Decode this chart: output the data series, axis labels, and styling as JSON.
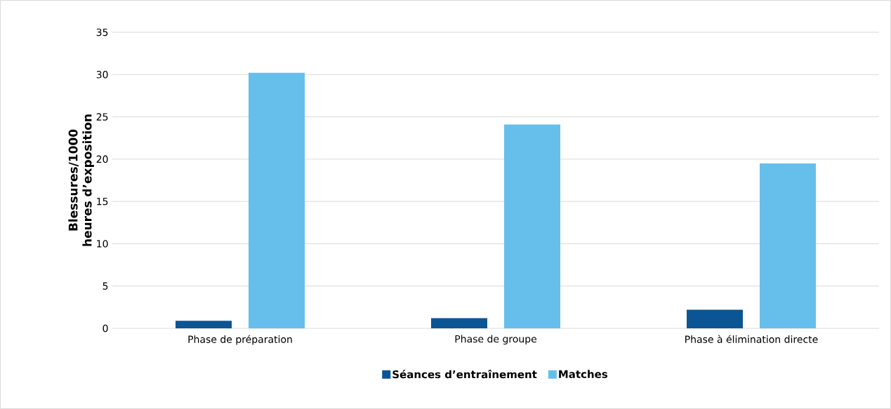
{
  "chart_data": {
    "type": "bar",
    "ylabel": "Blessures/1000 heures d’exposition",
    "categories": [
      "Phase de préparation",
      "Phase de groupe",
      "Phase à élimination directe"
    ],
    "series": [
      {
        "name": "Séances d’entraînement",
        "color": "#0b5594",
        "values": [
          0.9,
          1.2,
          2.2
        ]
      },
      {
        "name": "Matches",
        "color": "#66bfeb",
        "values": [
          30.2,
          24.1,
          19.5
        ]
      }
    ],
    "ylim": [
      0,
      35
    ],
    "yticks": [
      0,
      5,
      10,
      15,
      20,
      25,
      30,
      35
    ],
    "grid": "y",
    "legend": "bottom"
  }
}
